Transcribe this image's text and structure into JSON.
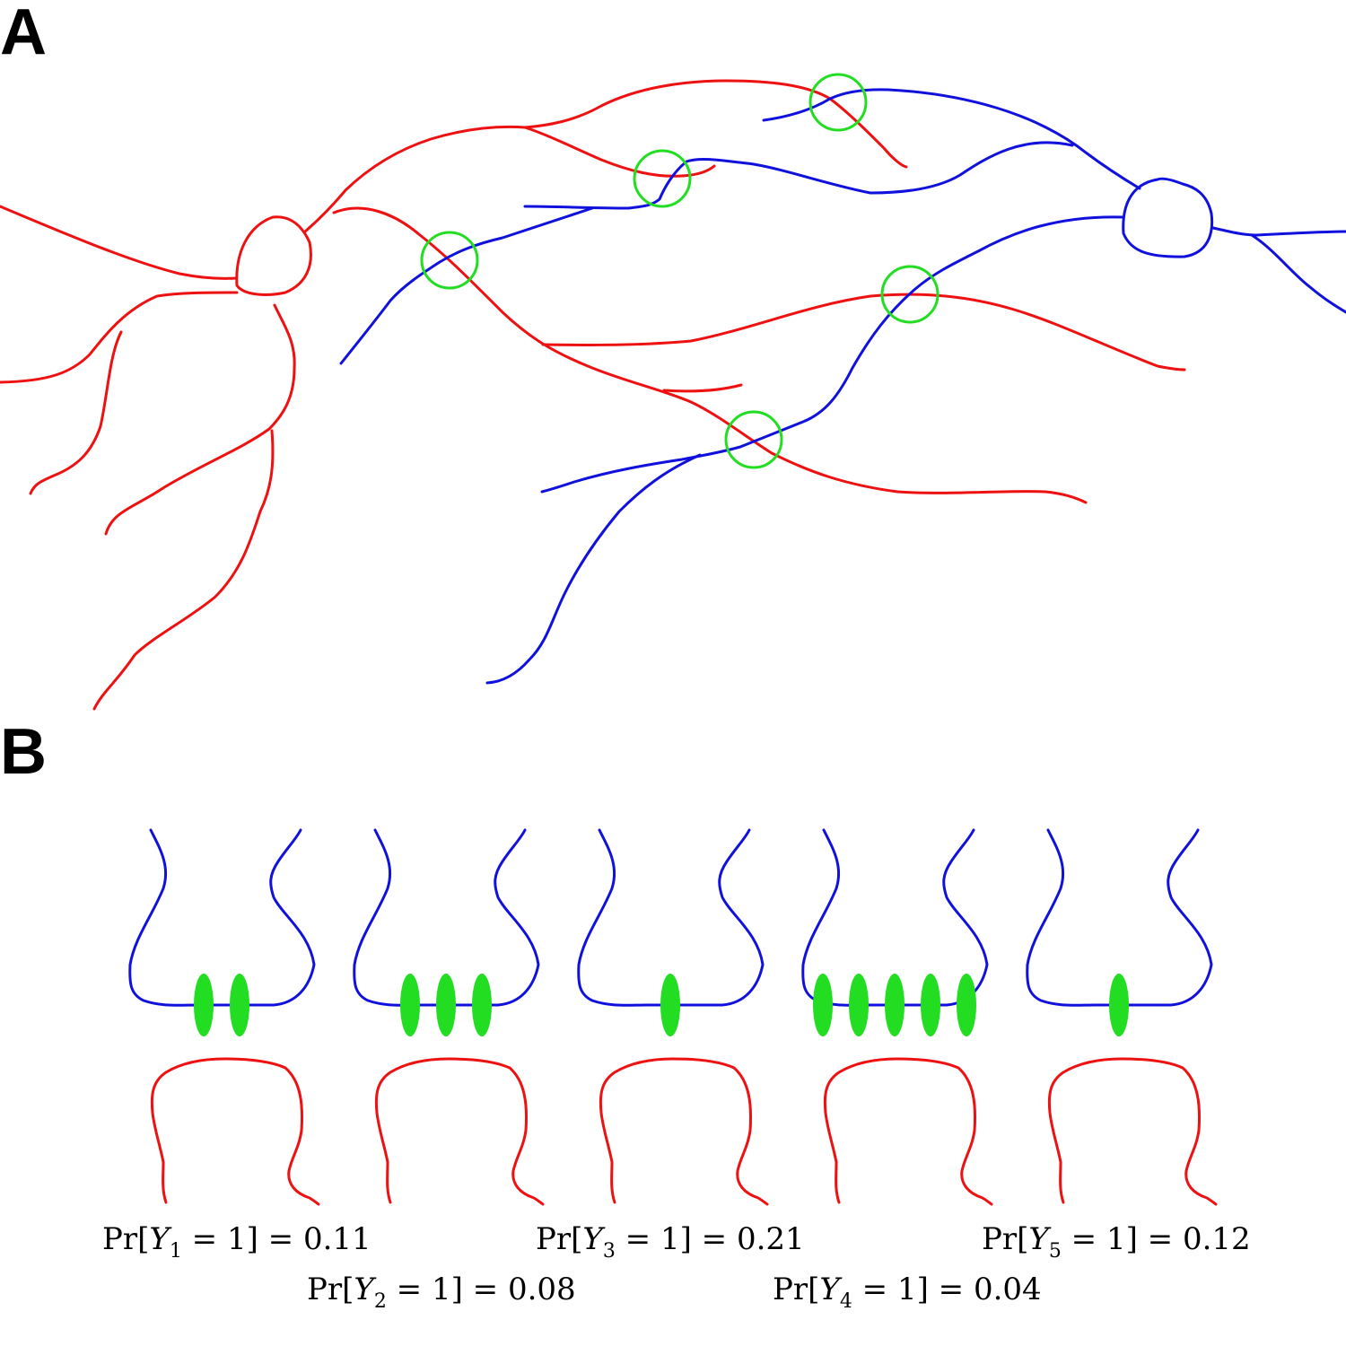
{
  "panels": {
    "a_label": "A",
    "b_label": "B"
  },
  "colors": {
    "axon": "#ee1111",
    "dendrite": "#1111dd",
    "contact": "#22dd22"
  },
  "panel_b": {
    "synapse_counts": [
      2,
      3,
      1,
      5,
      1
    ],
    "probabilities": [
      {
        "prefix": "Pr[",
        "var": "Y",
        "sub": "1",
        "suffix": " = 1] = 0.11"
      },
      {
        "prefix": "Pr[",
        "var": "Y",
        "sub": "2",
        "suffix": " = 1] = 0.08"
      },
      {
        "prefix": "Pr[",
        "var": "Y",
        "sub": "3",
        "suffix": " = 1] = 0.21"
      },
      {
        "prefix": "Pr[",
        "var": "Y",
        "sub": "4",
        "suffix": " = 1] = 0.04"
      },
      {
        "prefix": "Pr[",
        "var": "Y",
        "sub": "5",
        "suffix": " = 1] = 0.12"
      }
    ]
  }
}
